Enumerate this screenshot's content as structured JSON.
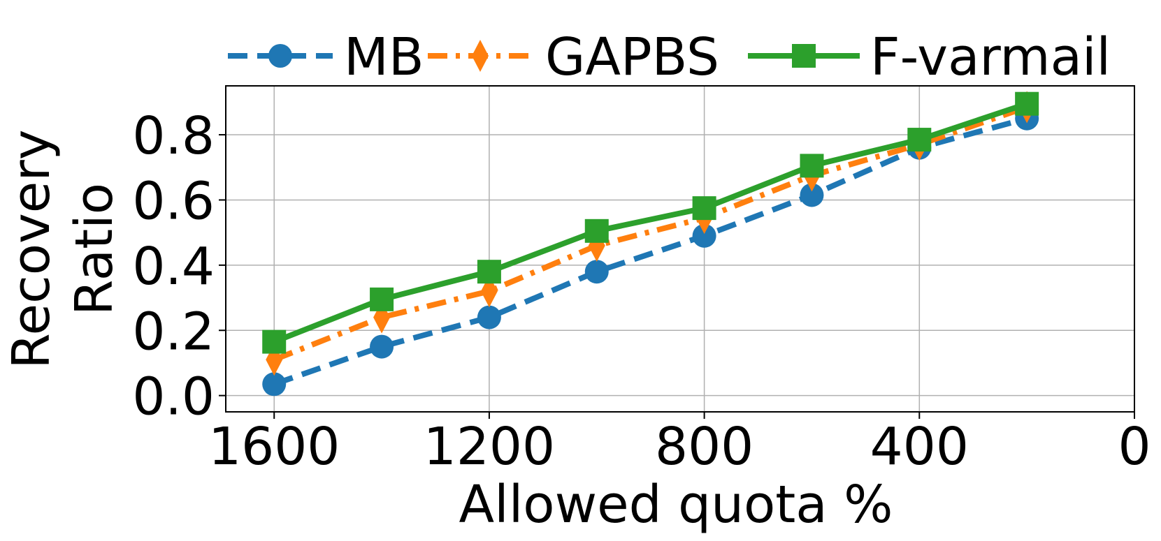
{
  "chart_data": {
    "type": "line",
    "xlabel": "Allowed quota %",
    "ylabel_line1": "Recovery",
    "ylabel_line2": "Ratio",
    "xlim": [
      1690,
      0
    ],
    "ylim": [
      -0.05,
      0.95
    ],
    "x_ticks": [
      1600,
      1200,
      800,
      400,
      0
    ],
    "x_tick_labels": [
      "1600",
      "1200",
      "800",
      "400",
      "0"
    ],
    "y_ticks": [
      0.0,
      0.2,
      0.4,
      0.6,
      0.8
    ],
    "y_tick_labels": [
      "0.0",
      "0.2",
      "0.4",
      "0.6",
      "0.8"
    ],
    "grid": true,
    "legend_placement": "top, above plot",
    "x": [
      1600,
      1400,
      1200,
      1000,
      800,
      600,
      400,
      200
    ],
    "series": [
      {
        "name": "MB",
        "color": "#1f77b4",
        "marker": "circle",
        "line_style": "dashed",
        "values": [
          0.035,
          0.15,
          0.24,
          0.38,
          0.49,
          0.615,
          0.76,
          0.85
        ]
      },
      {
        "name": "GAPBS",
        "color": "#ff7f0e",
        "marker": "thin-diamond",
        "line_style": "dash-dot",
        "values": [
          0.11,
          0.24,
          0.32,
          0.46,
          0.545,
          0.675,
          0.77,
          0.885
        ]
      },
      {
        "name": "F-varmail",
        "color": "#2ca02c",
        "marker": "square",
        "line_style": "solid",
        "values": [
          0.165,
          0.295,
          0.38,
          0.505,
          0.575,
          0.705,
          0.785,
          0.895
        ]
      }
    ]
  }
}
